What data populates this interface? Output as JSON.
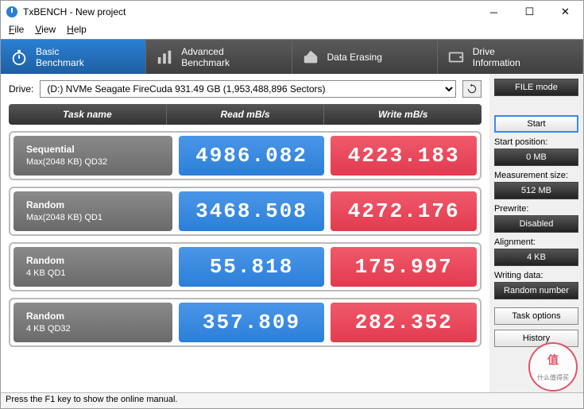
{
  "window": {
    "title": "TxBENCH - New project"
  },
  "menu": {
    "file": "File",
    "view": "View",
    "help": "Help"
  },
  "tabs": {
    "basic": {
      "l1": "Basic",
      "l2": "Benchmark"
    },
    "advanced": {
      "l1": "Advanced",
      "l2": "Benchmark"
    },
    "erase": {
      "l1": "Data Erasing"
    },
    "drive": {
      "l1": "Drive",
      "l2": "Information"
    }
  },
  "drive": {
    "label": "Drive:",
    "value": "(D:) NVMe Seagate FireCuda  931.49 GB (1,953,488,896 Sectors)"
  },
  "headers": {
    "task": "Task name",
    "read": "Read mB/s",
    "write": "Write mB/s"
  },
  "rows": [
    {
      "name": "Sequential",
      "sub": "Max(2048 KB) QD32",
      "read": "4986.082",
      "write": "4223.183"
    },
    {
      "name": "Random",
      "sub": "Max(2048 KB) QD1",
      "read": "3468.508",
      "write": "4272.176"
    },
    {
      "name": "Random",
      "sub": "4 KB QD1",
      "read": "55.818",
      "write": "175.997"
    },
    {
      "name": "Random",
      "sub": "4 KB QD32",
      "read": "357.809",
      "write": "282.352"
    }
  ],
  "side": {
    "filemode": "FILE mode",
    "start": "Start",
    "startpos_l": "Start position:",
    "startpos_v": "0 MB",
    "meassize_l": "Measurement size:",
    "meassize_v": "512 MB",
    "prewrite_l": "Prewrite:",
    "prewrite_v": "Disabled",
    "align_l": "Alignment:",
    "align_v": "4 KB",
    "wdata_l": "Writing data:",
    "wdata_v": "Random number",
    "taskopt": "Task options",
    "history": "History"
  },
  "status": {
    "text": "Press the F1 key to show the online manual."
  },
  "colors": {
    "tab_active": "#2a7fd4",
    "read": "#2b7fd8",
    "write": "#e33a50",
    "header": "#3a3a3a"
  }
}
